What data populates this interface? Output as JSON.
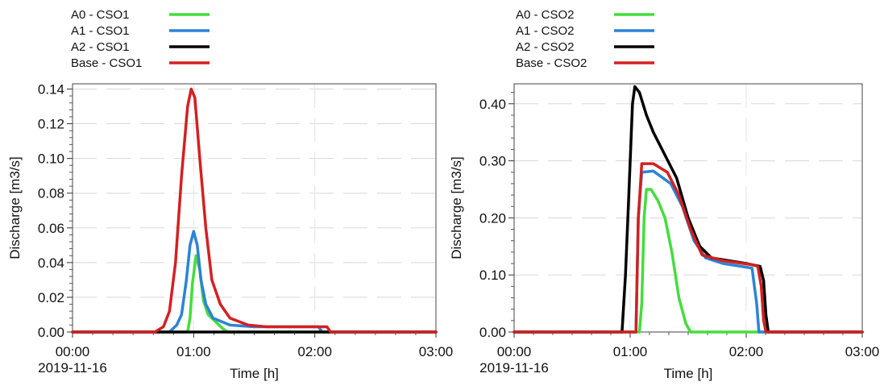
{
  "chart_data": [
    {
      "type": "line",
      "xlabel": "Time [h]",
      "ylabel": "Discharge [m3/s]",
      "xlim": [
        0,
        3
      ],
      "ylim": [
        0,
        0.143
      ],
      "x_ticks": [
        0,
        1,
        2,
        3
      ],
      "x_tick_labels": [
        "00:00",
        "01:00",
        "02:00",
        "03:00"
      ],
      "x_date_label": "2019-11-16",
      "y_ticks": [
        0,
        0.02,
        0.04,
        0.06,
        0.08,
        0.1,
        0.12,
        0.14
      ],
      "y_tick_labels": [
        "0.00",
        "0.02",
        "0.04",
        "0.06",
        "0.08",
        "0.10",
        "0.12",
        "0.14"
      ],
      "legend_position": "top-left",
      "series": [
        {
          "name": "A0 - CSO1",
          "color": "#44dd3c",
          "points": [
            [
              0,
              0
            ],
            [
              0.95,
              0
            ],
            [
              0.97,
              0.008
            ],
            [
              0.99,
              0.028
            ],
            [
              1.02,
              0.044
            ],
            [
              1.05,
              0.036
            ],
            [
              1.08,
              0.018
            ],
            [
              1.12,
              0.01
            ],
            [
              1.18,
              0.006
            ],
            [
              1.24,
              0.002
            ],
            [
              1.28,
              0
            ],
            [
              3,
              0
            ]
          ]
        },
        {
          "name": "A1 - CSO1",
          "color": "#2b84d6",
          "points": [
            [
              0,
              0
            ],
            [
              0.8,
              0
            ],
            [
              0.86,
              0.004
            ],
            [
              0.9,
              0.01
            ],
            [
              0.94,
              0.03
            ],
            [
              0.97,
              0.05
            ],
            [
              1.0,
              0.058
            ],
            [
              1.03,
              0.05
            ],
            [
              1.06,
              0.03
            ],
            [
              1.1,
              0.016
            ],
            [
              1.16,
              0.008
            ],
            [
              1.3,
              0.004
            ],
            [
              1.5,
              0.003
            ],
            [
              2.03,
              0.003
            ],
            [
              2.06,
              0
            ],
            [
              3,
              0
            ]
          ]
        },
        {
          "name": "A2 - CSO1",
          "color": "#000000",
          "points": [
            [
              0,
              0
            ],
            [
              3,
              0
            ]
          ]
        },
        {
          "name": "Base - CSO1",
          "color": "#d42020",
          "points": [
            [
              0,
              0
            ],
            [
              0.68,
              0
            ],
            [
              0.75,
              0.003
            ],
            [
              0.8,
              0.012
            ],
            [
              0.85,
              0.04
            ],
            [
              0.9,
              0.09
            ],
            [
              0.95,
              0.13
            ],
            [
              0.98,
              0.14
            ],
            [
              1.01,
              0.135
            ],
            [
              1.05,
              0.1
            ],
            [
              1.1,
              0.06
            ],
            [
              1.15,
              0.03
            ],
            [
              1.22,
              0.016
            ],
            [
              1.3,
              0.008
            ],
            [
              1.45,
              0.004
            ],
            [
              1.6,
              0.003
            ],
            [
              2.1,
              0.003
            ],
            [
              2.13,
              0
            ],
            [
              3,
              0
            ]
          ]
        }
      ]
    },
    {
      "type": "line",
      "xlabel": "Time [h]",
      "ylabel": "Discharge [m3/s]",
      "xlim": [
        0,
        3
      ],
      "ylim": [
        0,
        0.435
      ],
      "x_ticks": [
        0,
        1,
        2,
        3
      ],
      "x_tick_labels": [
        "00:00",
        "01:00",
        "02:00",
        "03:00"
      ],
      "x_date_label": "2019-11-16",
      "y_ticks": [
        0,
        0.1,
        0.2,
        0.3,
        0.4
      ],
      "y_tick_labels": [
        "0.00",
        "0.10",
        "0.20",
        "0.30",
        "0.40"
      ],
      "legend_position": "top-left",
      "series": [
        {
          "name": "A0 - CSO2",
          "color": "#44dd3c",
          "points": [
            [
              0,
              0
            ],
            [
              1.08,
              0
            ],
            [
              1.1,
              0.05
            ],
            [
              1.12,
              0.2
            ],
            [
              1.14,
              0.25
            ],
            [
              1.18,
              0.25
            ],
            [
              1.24,
              0.23
            ],
            [
              1.3,
              0.2
            ],
            [
              1.36,
              0.14
            ],
            [
              1.42,
              0.06
            ],
            [
              1.48,
              0.015
            ],
            [
              1.52,
              0
            ],
            [
              3,
              0
            ]
          ]
        },
        {
          "name": "A1 - CSO2",
          "color": "#2b84d6",
          "points": [
            [
              0,
              0
            ],
            [
              1.05,
              0
            ],
            [
              1.07,
              0.2
            ],
            [
              1.1,
              0.28
            ],
            [
              1.2,
              0.282
            ],
            [
              1.35,
              0.26
            ],
            [
              1.45,
              0.22
            ],
            [
              1.55,
              0.16
            ],
            [
              1.65,
              0.13
            ],
            [
              1.8,
              0.12
            ],
            [
              2.05,
              0.112
            ],
            [
              2.09,
              0.05
            ],
            [
              2.11,
              0
            ],
            [
              3,
              0
            ]
          ]
        },
        {
          "name": "A2 - CSO2",
          "color": "#000000",
          "points": [
            [
              0,
              0
            ],
            [
              0.93,
              0
            ],
            [
              0.96,
              0.1
            ],
            [
              0.99,
              0.25
            ],
            [
              1.02,
              0.4
            ],
            [
              1.04,
              0.43
            ],
            [
              1.08,
              0.42
            ],
            [
              1.14,
              0.38
            ],
            [
              1.2,
              0.35
            ],
            [
              1.3,
              0.31
            ],
            [
              1.4,
              0.27
            ],
            [
              1.5,
              0.2
            ],
            [
              1.6,
              0.15
            ],
            [
              1.7,
              0.13
            ],
            [
              2.0,
              0.12
            ],
            [
              2.12,
              0.115
            ],
            [
              2.15,
              0.09
            ],
            [
              2.17,
              0.03
            ],
            [
              2.19,
              0
            ],
            [
              3,
              0
            ]
          ]
        },
        {
          "name": "Base - CSO2",
          "color": "#d42020",
          "points": [
            [
              0,
              0
            ],
            [
              1.05,
              0
            ],
            [
              1.07,
              0.2
            ],
            [
              1.1,
              0.295
            ],
            [
              1.2,
              0.295
            ],
            [
              1.32,
              0.28
            ],
            [
              1.42,
              0.24
            ],
            [
              1.52,
              0.18
            ],
            [
              1.62,
              0.135
            ],
            [
              1.8,
              0.125
            ],
            [
              2.05,
              0.118
            ],
            [
              2.1,
              0.115
            ],
            [
              2.13,
              0.08
            ],
            [
              2.15,
              0.02
            ],
            [
              2.17,
              0
            ],
            [
              3,
              0
            ]
          ]
        }
      ]
    }
  ]
}
